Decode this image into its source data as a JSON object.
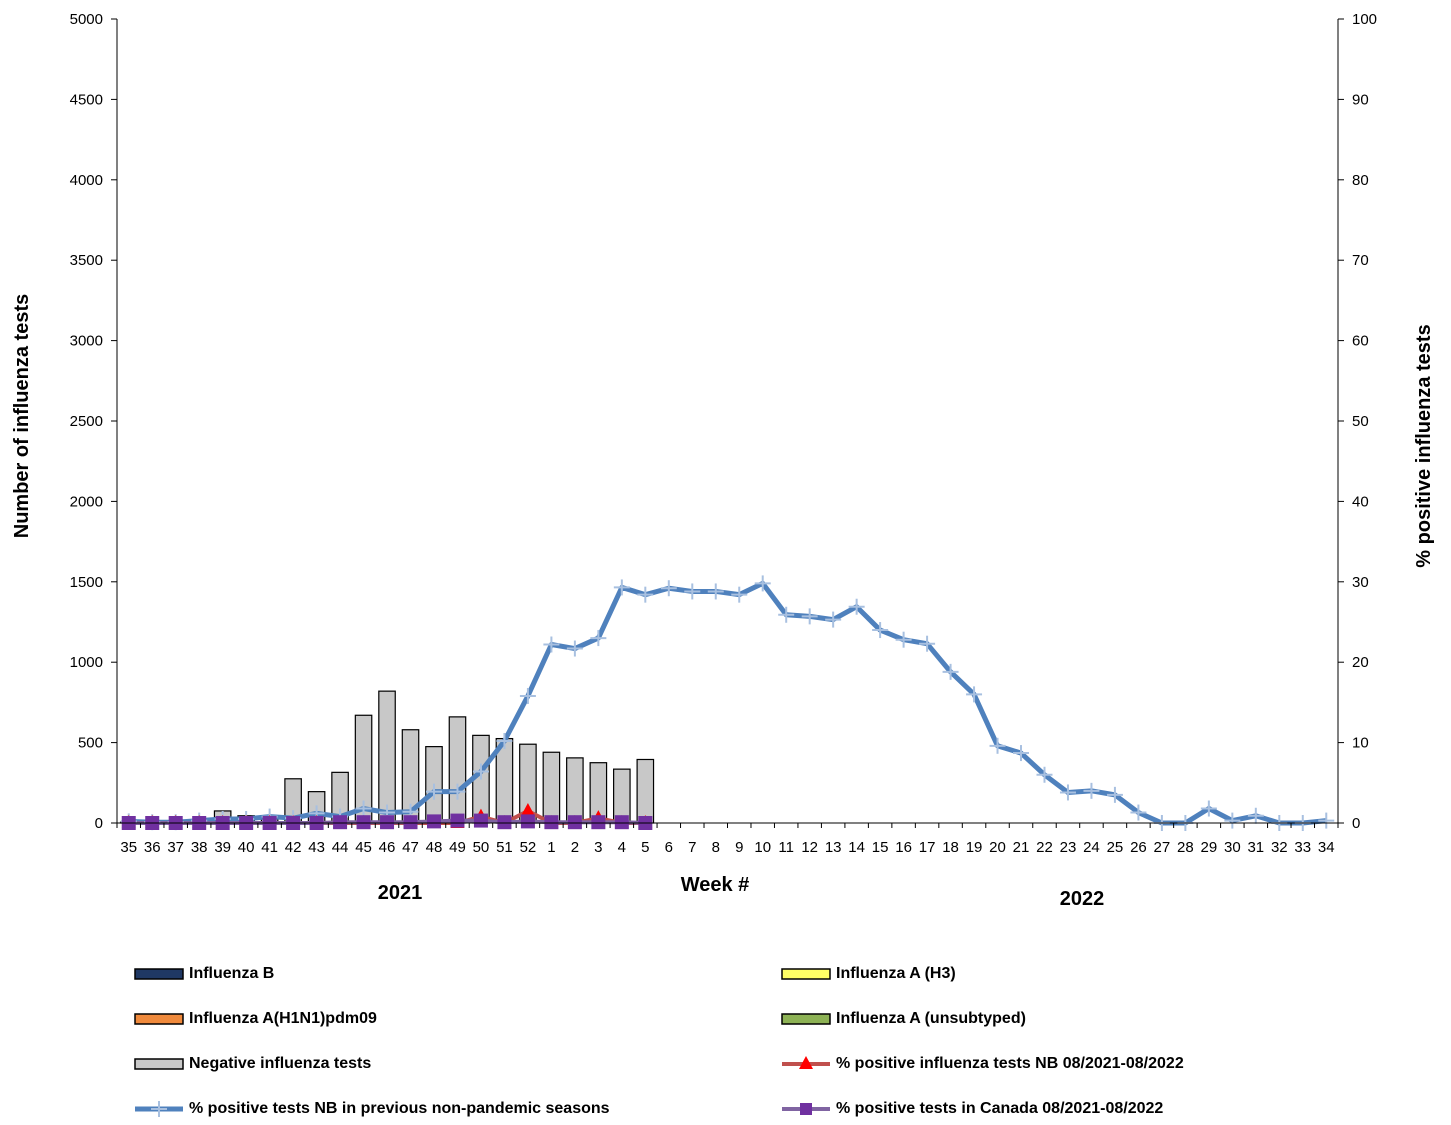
{
  "chart_data": {
    "type": "bar",
    "title": "",
    "xlabel": "Week #",
    "ylabel_left": "Number of influenza tests",
    "ylabel_right": "% positive influenza tests",
    "ylim_left": [
      0,
      5000
    ],
    "yticks_left": [
      0,
      500,
      1000,
      1500,
      2000,
      2500,
      3000,
      3500,
      4000,
      4500,
      5000
    ],
    "ylim_right": [
      0,
      100
    ],
    "yticks_right": [
      0,
      10,
      20,
      30,
      40,
      50,
      60,
      70,
      80,
      90,
      100
    ],
    "year_labels": [
      "2021",
      "2022"
    ],
    "categories": [
      "35",
      "36",
      "37",
      "38",
      "39",
      "40",
      "41",
      "42",
      "43",
      "44",
      "45",
      "46",
      "47",
      "48",
      "49",
      "50",
      "51",
      "52",
      "1",
      "2",
      "3",
      "4",
      "5",
      "6",
      "7",
      "8",
      "9",
      "10",
      "11",
      "12",
      "13",
      "14",
      "15",
      "16",
      "17",
      "18",
      "19",
      "20",
      "21",
      "22",
      "23",
      "24",
      "25",
      "26",
      "27",
      "28",
      "29",
      "30",
      "31",
      "32",
      "33",
      "34"
    ],
    "bar_series": [
      {
        "name": "Influenza B",
        "color": "#1f3864",
        "values": [
          0,
          0,
          0,
          0,
          0,
          0,
          0,
          0,
          0,
          0,
          0,
          0,
          0,
          0,
          0,
          0,
          0,
          0,
          0,
          0,
          0,
          0,
          0
        ]
      },
      {
        "name": "Influenza A(H1N1)pdm09",
        "color": "#f08a3c",
        "values": [
          0,
          0,
          0,
          0,
          0,
          0,
          0,
          0,
          0,
          0,
          0,
          0,
          0,
          0,
          0,
          0,
          0,
          0,
          0,
          0,
          0,
          0,
          0
        ]
      },
      {
        "name": "Influenza A (H3)",
        "color": "#ffff66",
        "values": [
          0,
          0,
          0,
          0,
          0,
          0,
          0,
          0,
          0,
          0,
          0,
          0,
          0,
          0,
          0,
          0,
          0,
          0,
          0,
          0,
          0,
          0,
          0
        ]
      },
      {
        "name": "Influenza A (unsubtyped)",
        "color": "#8db255",
        "values": [
          0,
          0,
          0,
          0,
          0,
          0,
          0,
          0,
          0,
          0,
          0,
          0,
          0,
          0,
          0,
          0,
          0,
          0,
          0,
          0,
          0,
          0,
          0
        ]
      },
      {
        "name": "Negative influenza tests",
        "color": "#c8c8c8",
        "values": [
          5,
          10,
          10,
          20,
          75,
          45,
          25,
          275,
          195,
          315,
          670,
          820,
          580,
          475,
          660,
          545,
          525,
          490,
          440,
          405,
          375,
          335,
          395
        ]
      }
    ],
    "line_series": [
      {
        "name": "% positive influenza tests NB 08/2021-08/2022",
        "color": "#c0504d",
        "marker": "triangle",
        "marker_color": "#ff0000",
        "values": [
          0,
          0,
          0,
          0,
          0,
          0,
          0,
          0,
          0,
          0,
          0,
          0,
          0,
          0,
          0,
          0.8,
          0,
          1.5,
          0,
          0,
          0.6,
          0,
          0
        ]
      },
      {
        "name": "% positive tests NB in previous non-pandemic seasons",
        "color": "#4f81bd",
        "marker": "plus",
        "marker_color": "#a8c0e0",
        "values": [
          0.2,
          0.1,
          0.1,
          0.3,
          0.5,
          0.5,
          0.8,
          0.6,
          1.2,
          0.8,
          1.8,
          1.3,
          1.4,
          3.9,
          3.9,
          6.4,
          10.2,
          15.8,
          22.2,
          21.7,
          23.0,
          29.3,
          28.4,
          29.2,
          28.8,
          28.8,
          28.4,
          29.8,
          25.9,
          25.7,
          25.3,
          26.9,
          24.0,
          22.8,
          22.3,
          18.8,
          16.0,
          9.6,
          8.7,
          6.0,
          3.8,
          4.0,
          3.5,
          1.3,
          0,
          0,
          1.8,
          0.3,
          0.9,
          0,
          0,
          0.3
        ]
      },
      {
        "name": "% positive tests  in Canada 08/2021-08/2022",
        "color": "#8064a2",
        "marker": "square",
        "marker_color": "#7030a0",
        "values": [
          0,
          0,
          0,
          0,
          0,
          0,
          0,
          0,
          0,
          0.1,
          0.1,
          0.1,
          0.1,
          0.2,
          0.3,
          0.3,
          0.1,
          0.2,
          0.1,
          0.1,
          0.1,
          0.1,
          0
        ]
      }
    ],
    "legend_position": "bottom",
    "grid": false
  }
}
